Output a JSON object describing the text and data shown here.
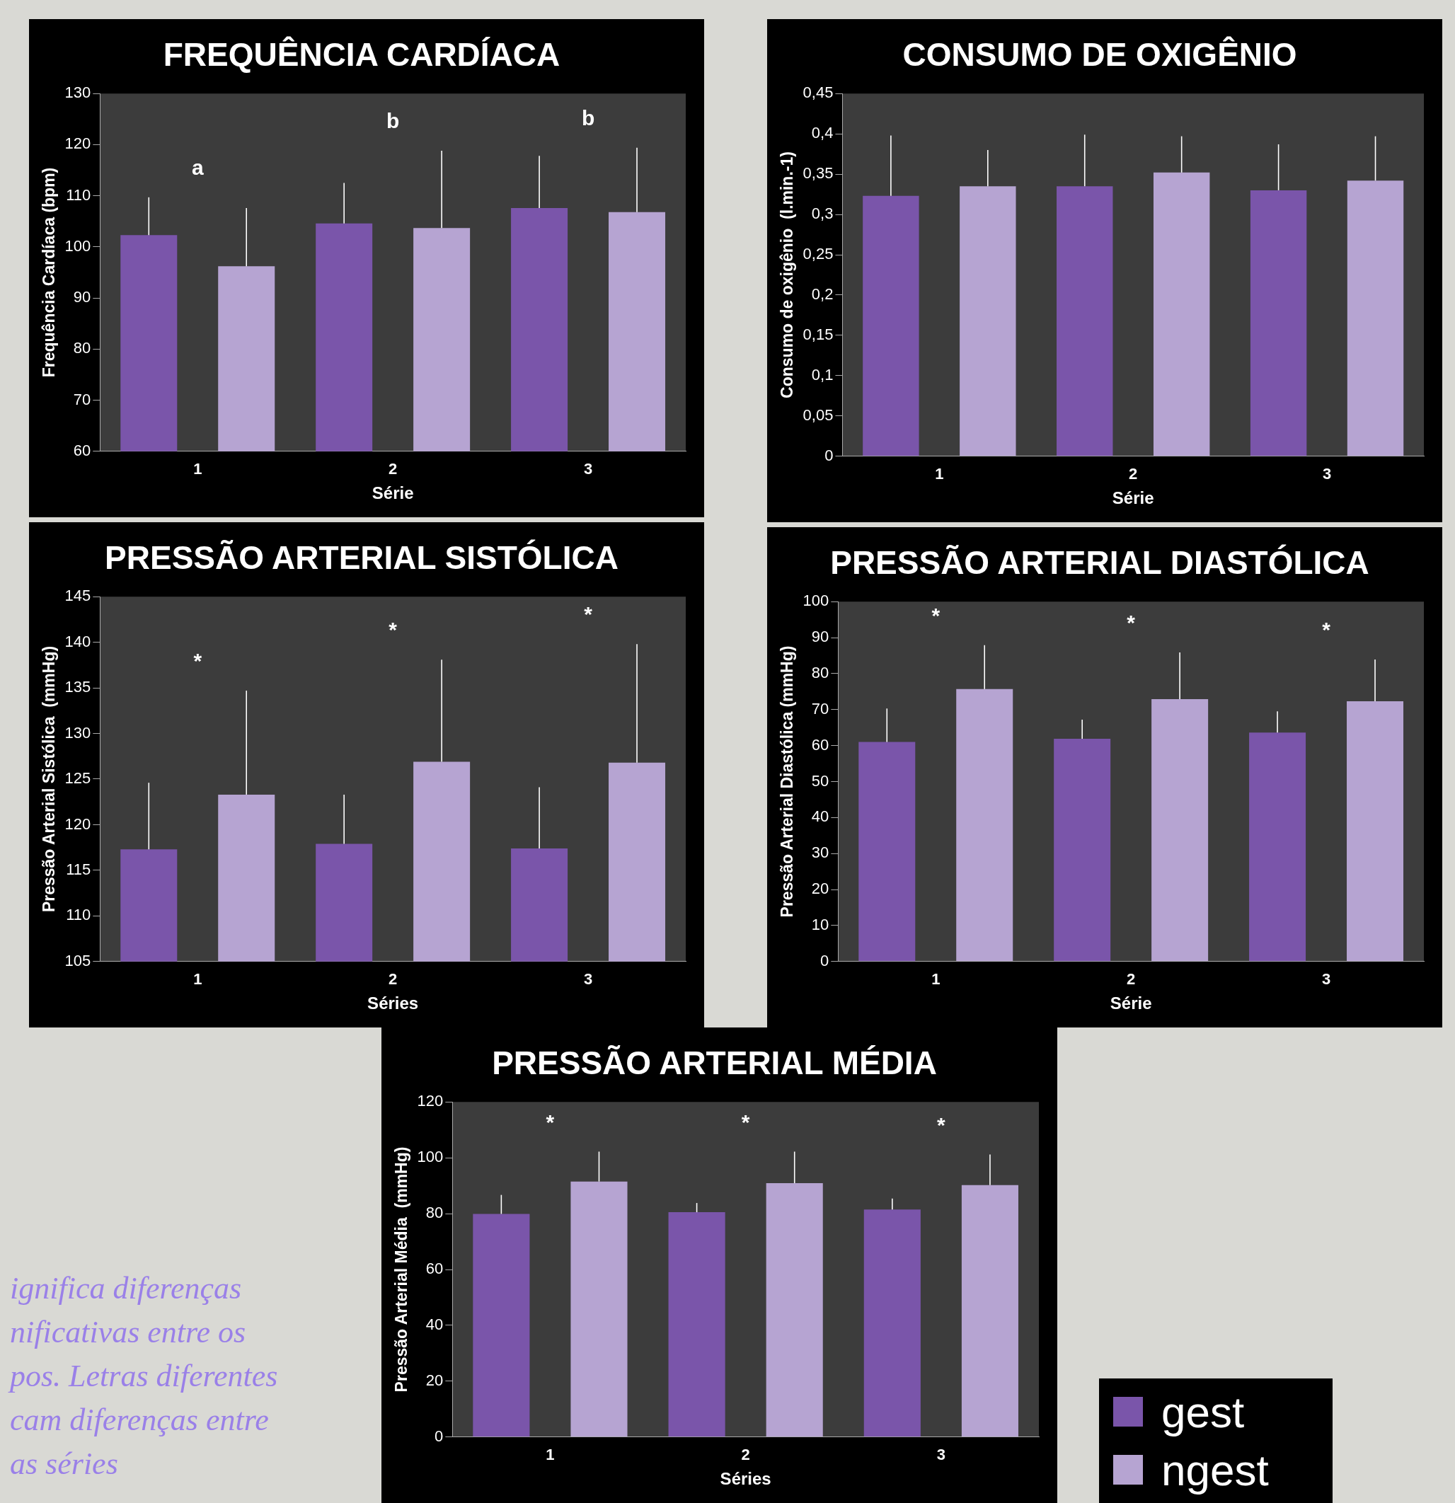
{
  "chart_data": [
    {
      "type": "bar",
      "title": "FREQUÊNCIA CARDÍACA",
      "xlabel": "Série",
      "ylabel": "Frequência Cardíaca (bpm)",
      "categories": [
        "1",
        "2",
        "3"
      ],
      "series": [
        {
          "color": "#7a55aa",
          "values": [
            102.3,
            104.6,
            107.6
          ],
          "errors": [
            7.4,
            7.9,
            10.2
          ]
        },
        {
          "color": "#b6a4d2",
          "values": [
            96.2,
            103.7,
            106.8
          ],
          "errors": [
            11.4,
            15.1,
            12.6
          ]
        }
      ],
      "ylim": [
        60,
        130
      ],
      "yticks": [
        60,
        70,
        80,
        90,
        100,
        110,
        120,
        130
      ],
      "annotations": [
        "a",
        "b",
        "b"
      ]
    },
    {
      "type": "bar",
      "title": "CONSUMO DE OXIGÊNIO",
      "xlabel": "Série",
      "ylabel": "Consumo de oxigênio  (l.min.-1)",
      "categories": [
        "1",
        "2",
        "3"
      ],
      "series": [
        {
          "color": "#7a55aa",
          "values": [
            0.323,
            0.335,
            0.33
          ],
          "errors": [
            0.075,
            0.064,
            0.057
          ]
        },
        {
          "color": "#b6a4d2",
          "values": [
            0.335,
            0.352,
            0.342
          ],
          "errors": [
            0.045,
            0.045,
            0.055
          ]
        }
      ],
      "ylim": [
        0,
        0.45
      ],
      "yticks": [
        0,
        {
          "value": 0.05,
          "label": "0,05"
        },
        {
          "value": 0.1,
          "label": "0,1"
        },
        {
          "value": 0.15,
          "label": "0,15"
        },
        {
          "value": 0.2,
          "label": "0,2"
        },
        {
          "value": 0.25,
          "label": "0,25"
        },
        {
          "value": 0.3,
          "label": "0,3"
        },
        {
          "value": 0.35,
          "label": "0,35"
        },
        {
          "value": 0.4,
          "label": "0,4"
        },
        {
          "value": 0.45,
          "label": "0,45"
        }
      ]
    },
    {
      "type": "bar",
      "title": "PRESSÃO ARTERIAL SISTÓLICA",
      "xlabel": "Séries",
      "ylabel": "Pressão Arterial Sistólica  (mmHg)",
      "categories": [
        "1",
        "2",
        "3"
      ],
      "series": [
        {
          "color": "#7a55aa",
          "values": [
            117.3,
            117.9,
            117.4
          ],
          "errors": [
            7.3,
            5.4,
            6.7
          ]
        },
        {
          "color": "#b6a4d2",
          "values": [
            123.3,
            126.9,
            126.8
          ],
          "errors": [
            11.4,
            11.2,
            13
          ]
        }
      ],
      "ylim": [
        105,
        145
      ],
      "yticks": [
        105,
        110,
        115,
        120,
        125,
        130,
        135,
        140,
        145
      ],
      "annotations": [
        "*",
        "*",
        "*"
      ]
    },
    {
      "type": "bar",
      "title": "PRESSÃO ARTERIAL DIASTÓLICA",
      "xlabel": "Série",
      "ylabel": "Pressão Arterial Diastólica (mmHg)",
      "categories": [
        "1",
        "2",
        "3"
      ],
      "series": [
        {
          "color": "#7a55aa",
          "values": [
            61,
            61.9,
            63.6
          ],
          "errors": [
            9.3,
            5.3,
            5.9
          ]
        },
        {
          "color": "#b6a4d2",
          "values": [
            75.7,
            72.9,
            72.3
          ],
          "errors": [
            12.2,
            13,
            11.6
          ]
        }
      ],
      "ylim": [
        0,
        100
      ],
      "yticks": [
        0,
        10,
        20,
        30,
        40,
        50,
        60,
        70,
        80,
        90,
        100
      ],
      "annotations": [
        "*",
        "*",
        "*"
      ]
    },
    {
      "type": "bar",
      "title": "PRESSÃO ARTERIAL MÉDIA",
      "xlabel": "Séries",
      "ylabel": "Pressão Arterial Média  (mmHg)",
      "categories": [
        "1",
        "2",
        "3"
      ],
      "series": [
        {
          "name": "gest",
          "color": "#7a55aa",
          "values": [
            79.9,
            80.5,
            81.5
          ],
          "errors": [
            6.8,
            3.3,
            3.9
          ]
        },
        {
          "name": "ngest",
          "color": "#b6a4d2",
          "values": [
            91.5,
            90.9,
            90.2
          ],
          "errors": [
            10.7,
            11.3,
            11
          ]
        }
      ],
      "ylim": [
        0,
        120
      ],
      "yticks": [
        0,
        20,
        40,
        60,
        80,
        100,
        120
      ],
      "legend": "right",
      "annotations": [
        "*",
        "*",
        "*",
        "ignifica diferenças\nnificativas entre os\npos. Letras diferentes\ncam diferenças entre\nas séries"
      ]
    }
  ]
}
